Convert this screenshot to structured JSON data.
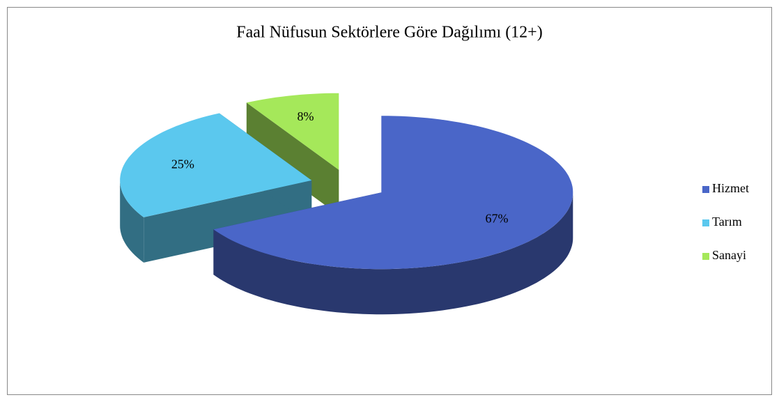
{
  "chart_data": {
    "type": "pie3d",
    "title": "Faal Nüfusun Sektörlere Göre Dağılımı (12+)",
    "categories": [
      "Hizmet",
      "Tarım",
      "Sanayi"
    ],
    "values": [
      67,
      25,
      8
    ],
    "value_labels": [
      "67%",
      "25%",
      "8%"
    ],
    "colors": [
      "#4a66c8",
      "#5bc8ee",
      "#a5e85a"
    ],
    "legend": "right"
  }
}
